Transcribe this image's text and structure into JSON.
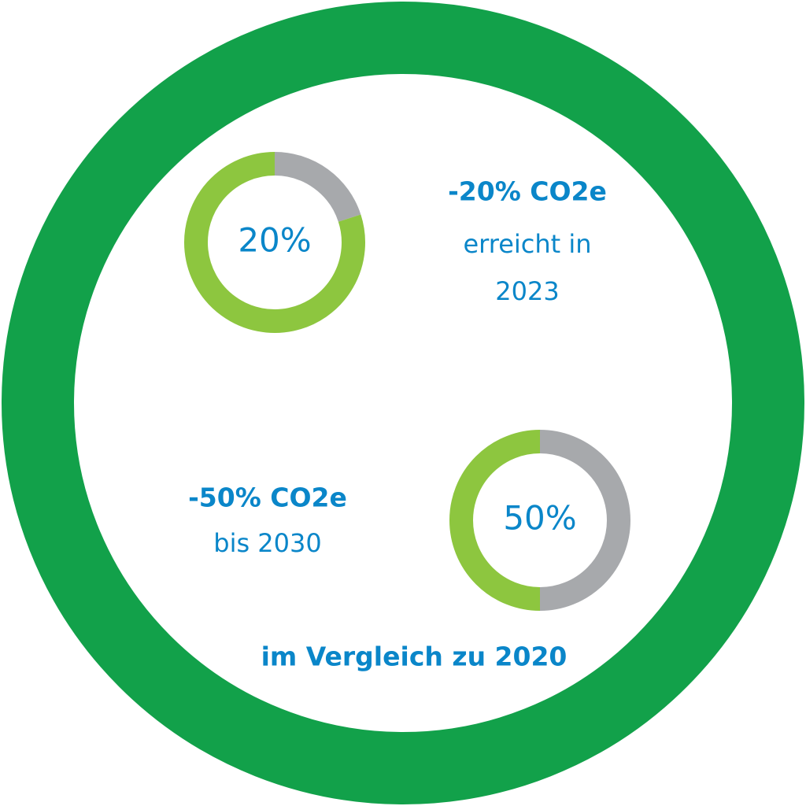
{
  "chart_data": [
    {
      "type": "donut",
      "values": [
        20,
        80
      ],
      "value_labels": [
        "20%",
        null
      ],
      "colors": [
        "#a7a9ac",
        "#8dc63f"
      ],
      "annotation": [
        "-20% CO2e",
        "erreicht in",
        "2023"
      ]
    },
    {
      "type": "donut",
      "values": [
        50,
        50
      ],
      "value_labels": [
        "50%",
        null
      ],
      "colors": [
        "#a7a9ac",
        "#8dc63f"
      ],
      "annotation": [
        "-50% CO2e",
        "bis 2030"
      ]
    }
  ],
  "footer": "im Vergleich zu 2020"
}
